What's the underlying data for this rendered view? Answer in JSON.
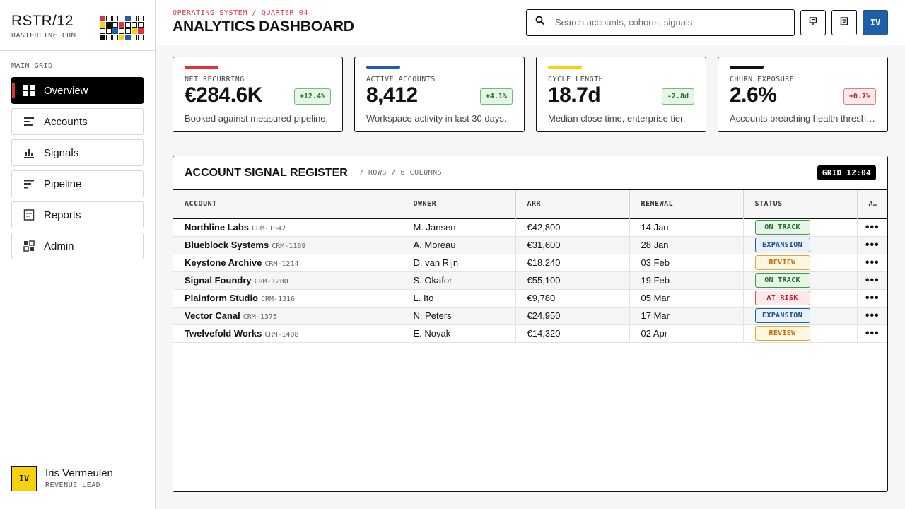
{
  "brand": {
    "title": "RSTR/12",
    "subtitle": "RASTERLINE CRM"
  },
  "sidebar": {
    "section_label": "MAIN GRID",
    "items": [
      {
        "label": "Overview",
        "icon": "grid-icon"
      },
      {
        "label": "Accounts",
        "icon": "list-icon"
      },
      {
        "label": "Signals",
        "icon": "bar-chart-icon"
      },
      {
        "label": "Pipeline",
        "icon": "pipeline-icon"
      },
      {
        "label": "Reports",
        "icon": "report-icon"
      },
      {
        "label": "Admin",
        "icon": "admin-icon"
      }
    ],
    "active_index": 0
  },
  "user": {
    "initials": "IV",
    "name": "Iris Vermeulen",
    "role": "REVENUE LEAD"
  },
  "header": {
    "breadcrumb": "OPERATING SYSTEM / QUARTER 04",
    "title": "ANALYTICS DASHBOARD",
    "search_placeholder": "Search accounts, cohorts, signals",
    "avatar_initials": "IV"
  },
  "kpis": [
    {
      "label": "NET RECURRING",
      "value": "€284.6K",
      "delta": "+12.4%",
      "delta_type": "up",
      "note": "Booked against measured pipeline.",
      "accent": "#e0323c"
    },
    {
      "label": "ACTIVE ACCOUNTS",
      "value": "8,412",
      "delta": "+4.1%",
      "delta_type": "up",
      "note": "Workspace activity in last 30 days.",
      "accent": "#1f5ea8"
    },
    {
      "label": "CYCLE LENGTH",
      "value": "18.7d",
      "delta": "-2.8d",
      "delta_type": "up",
      "note": "Median close time, enterprise tier.",
      "accent": "#f5d20a"
    },
    {
      "label": "CHURN EXPOSURE",
      "value": "2.6%",
      "delta": "+0.7%",
      "delta_type": "down",
      "note": "Accounts breaching health thresh…",
      "accent": "#111111"
    }
  ],
  "table": {
    "title": "ACCOUNT SIGNAL REGISTER",
    "meta": "7 ROWS / 6 COLUMNS",
    "badge": "GRID 12:04",
    "columns": [
      "ACCOUNT",
      "OWNER",
      "ARR",
      "RENEWAL",
      "STATUS",
      "A…"
    ],
    "rows": [
      {
        "name": "Northline Labs",
        "id": "CRM-1042",
        "owner": "M. Jansen",
        "arr": "€42,800",
        "renewal": "14 Jan",
        "status": "ON TRACK",
        "status_type": "ontrack"
      },
      {
        "name": "Blueblock Systems",
        "id": "CRM-1189",
        "owner": "A. Moreau",
        "arr": "€31,600",
        "renewal": "28 Jan",
        "status": "EXPANSION",
        "status_type": "expansion"
      },
      {
        "name": "Keystone Archive",
        "id": "CRM-1214",
        "owner": "D. van Rijn",
        "arr": "€18,240",
        "renewal": "03 Feb",
        "status": "REVIEW",
        "status_type": "review"
      },
      {
        "name": "Signal Foundry",
        "id": "CRM-1280",
        "owner": "S. Okafor",
        "arr": "€55,100",
        "renewal": "19 Feb",
        "status": "ON TRACK",
        "status_type": "ontrack"
      },
      {
        "name": "Plainform Studio",
        "id": "CRM-1316",
        "owner": "L. Ito",
        "arr": "€9,780",
        "renewal": "05 Mar",
        "status": "AT RISK",
        "status_type": "atrisk"
      },
      {
        "name": "Vector Canal",
        "id": "CRM-1375",
        "owner": "N. Peters",
        "arr": "€24,950",
        "renewal": "17 Mar",
        "status": "EXPANSION",
        "status_type": "expansion"
      },
      {
        "name": "Twelvefold Works",
        "id": "CRM-1408",
        "owner": "E. Novak",
        "arr": "€14,320",
        "renewal": "02 Apr",
        "status": "REVIEW",
        "status_type": "review"
      }
    ],
    "row_action": "•••"
  },
  "colors": {
    "red": "#e0323c",
    "blue": "#1f5ea8",
    "yellow": "#f5d20a",
    "black": "#111111"
  }
}
